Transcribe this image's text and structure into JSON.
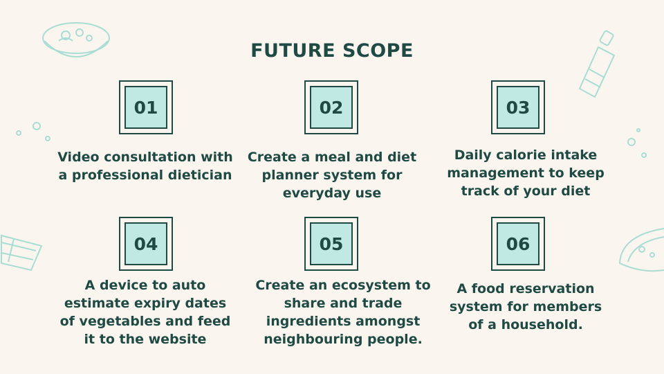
{
  "slide": {
    "title": "FUTURE SCOPE",
    "items": [
      {
        "number": "01",
        "text": "Video consultation with a professional dietician"
      },
      {
        "number": "02",
        "text": "Create a meal and diet planner system for everyday use"
      },
      {
        "number": "03",
        "text": "Daily calorie intake management to keep track of your diet"
      },
      {
        "number": "04",
        "text": "A device to auto estimate expiry dates of vegetables and feed it to the website"
      },
      {
        "number": "05",
        "text": "Create an ecosystem to share and trade ingredients amongst neighbouring people."
      },
      {
        "number": "06",
        "text": "A food reservation system for members of a household."
      }
    ]
  },
  "colors": {
    "background": "#faf6ef",
    "text": "#1f4a44",
    "box_fill": "#bfe9e2",
    "decoration": "#a9dcd3"
  },
  "decorations": [
    "salad-bowl-icon",
    "pepper-mill-icon",
    "sandwich-icon",
    "taco-icon",
    "bubbles-icon"
  ]
}
